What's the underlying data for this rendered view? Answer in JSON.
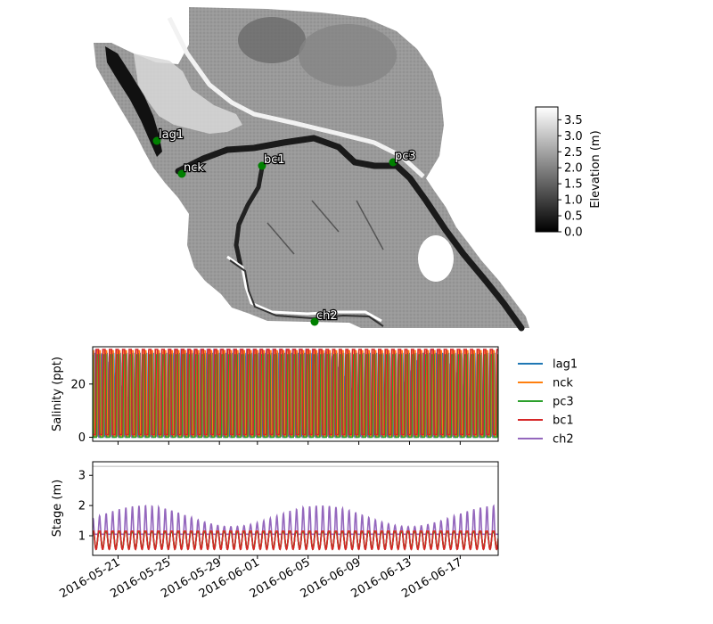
{
  "colors": {
    "lag1": "#1f77b4",
    "nck": "#ff7f0e",
    "pc3": "#2ca02c",
    "bc1": "#d62728",
    "ch2": "#9467bd",
    "station_marker": "#008000"
  },
  "chart_data": [
    {
      "type": "heatmap",
      "description_role": "elevation-map",
      "colormap": "grayscale (black = low, white = high)",
      "colorbar": {
        "label": "Elevation (m)",
        "range": [
          0.0,
          3.9
        ],
        "ticks": [
          "0.0",
          "0.5",
          "1.0",
          "1.5",
          "2.0",
          "2.5",
          "3.0",
          "3.5"
        ]
      },
      "stations": [
        {
          "name": "lag1"
        },
        {
          "name": "nck"
        },
        {
          "name": "bc1"
        },
        {
          "name": "pc3"
        },
        {
          "name": "ch2"
        }
      ]
    },
    {
      "type": "line",
      "ylabel": "Salinity (ppt)",
      "ylim": [
        -1.5,
        34
      ],
      "yticks": [
        "0",
        "20"
      ],
      "xlim": [
        "2016-05-19",
        "2016-06-20"
      ],
      "legend": "right",
      "series_meta": [
        {
          "name": "lag1",
          "peak": 31.5,
          "trough": 0.5,
          "daily_cycles": 2
        },
        {
          "name": "nck",
          "peak": 32.5,
          "trough": 0.5,
          "daily_cycles": 2
        },
        {
          "name": "pc3",
          "peak": 31.0,
          "trough": 0.0,
          "daily_cycles": 2
        },
        {
          "name": "bc1",
          "peak": 33.0,
          "trough": 1.0,
          "daily_cycles": 2
        },
        {
          "name": "ch2",
          "peak": 33.0,
          "trough": 0.0,
          "daily_cycles": 2
        }
      ]
    },
    {
      "type": "line",
      "ylabel": "Stage (m)",
      "ylim": [
        0.35,
        3.45
      ],
      "yticks": [
        "1",
        "2",
        "3"
      ],
      "reference_line": 3.3,
      "xlim": [
        "2016-05-19",
        "2016-06-20"
      ],
      "xticks": [
        "2016-05-21",
        "2016-05-25",
        "2016-05-29",
        "2016-06-01",
        "2016-06-05",
        "2016-06-09",
        "2016-06-13",
        "2016-06-17"
      ],
      "series_meta": [
        {
          "name": "lag1",
          "low": 0.55,
          "high": 1.15
        },
        {
          "name": "nck",
          "low": 0.55,
          "high": 1.15
        },
        {
          "name": "pc3",
          "low": 0.6,
          "high": 1.1
        },
        {
          "name": "bc1",
          "low": 0.55,
          "high": 1.15
        },
        {
          "name": "ch2",
          "low": 1.05,
          "high_range": [
            1.3,
            2.0
          ]
        }
      ]
    }
  ]
}
